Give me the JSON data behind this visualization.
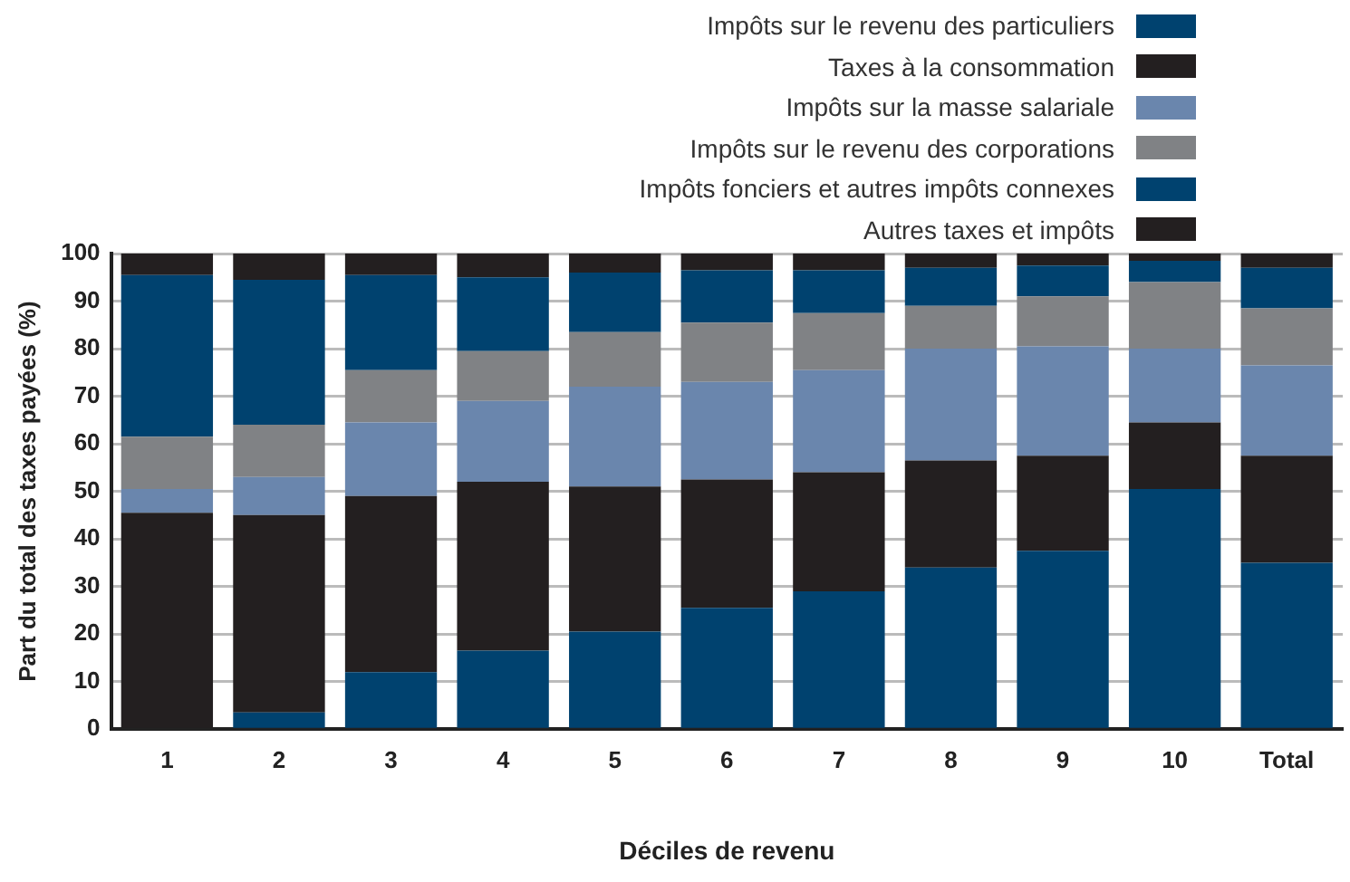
{
  "chart_data": {
    "type": "bar",
    "stacked": true,
    "xlabel": "Déciles de revenu",
    "ylabel": "Part du total des taxes payées (%)",
    "categories": [
      "1",
      "2",
      "3",
      "4",
      "5",
      "6",
      "7",
      "8",
      "9",
      "10",
      "Total"
    ],
    "series": [
      {
        "name": "Impôts sur le revenu des particuliers",
        "color": "#00426f",
        "values": [
          0,
          3.5,
          12,
          16.5,
          20.5,
          25.5,
          29,
          34,
          37.5,
          50.5,
          35
        ]
      },
      {
        "name": "Taxes à la consommation",
        "color": "#231f20",
        "values": [
          45.5,
          41.5,
          37,
          35.5,
          30.5,
          27,
          25,
          22.5,
          20,
          14,
          22.5
        ]
      },
      {
        "name": "Impôts sur la masse salariale",
        "color": "#6a86ad",
        "values": [
          5,
          8,
          15.5,
          17,
          21,
          20.5,
          21.5,
          23.5,
          23,
          15.5,
          19
        ]
      },
      {
        "name": "Impôts sur le revenu des corporations",
        "color": "#808285",
        "values": [
          11,
          11,
          11,
          10.5,
          11.5,
          12.5,
          12,
          9,
          10.5,
          14,
          12
        ]
      },
      {
        "name": "Impôts fonciers et autres impôts connexes",
        "color": "#00426f",
        "values": [
          34,
          30.5,
          20,
          15.5,
          12.5,
          11,
          9,
          8,
          6.5,
          4.5,
          8.5
        ]
      },
      {
        "name": "Autres taxes et impôts",
        "color": "#231f20",
        "values": [
          4.5,
          5.5,
          4.5,
          5,
          4,
          3.5,
          3.5,
          3,
          2.5,
          1.5,
          3
        ]
      }
    ],
    "ylim": [
      0,
      100
    ],
    "yticks": [
      0,
      10,
      20,
      30,
      40,
      50,
      60,
      70,
      80,
      90,
      100
    ],
    "grid": "y",
    "legend": "top right"
  }
}
